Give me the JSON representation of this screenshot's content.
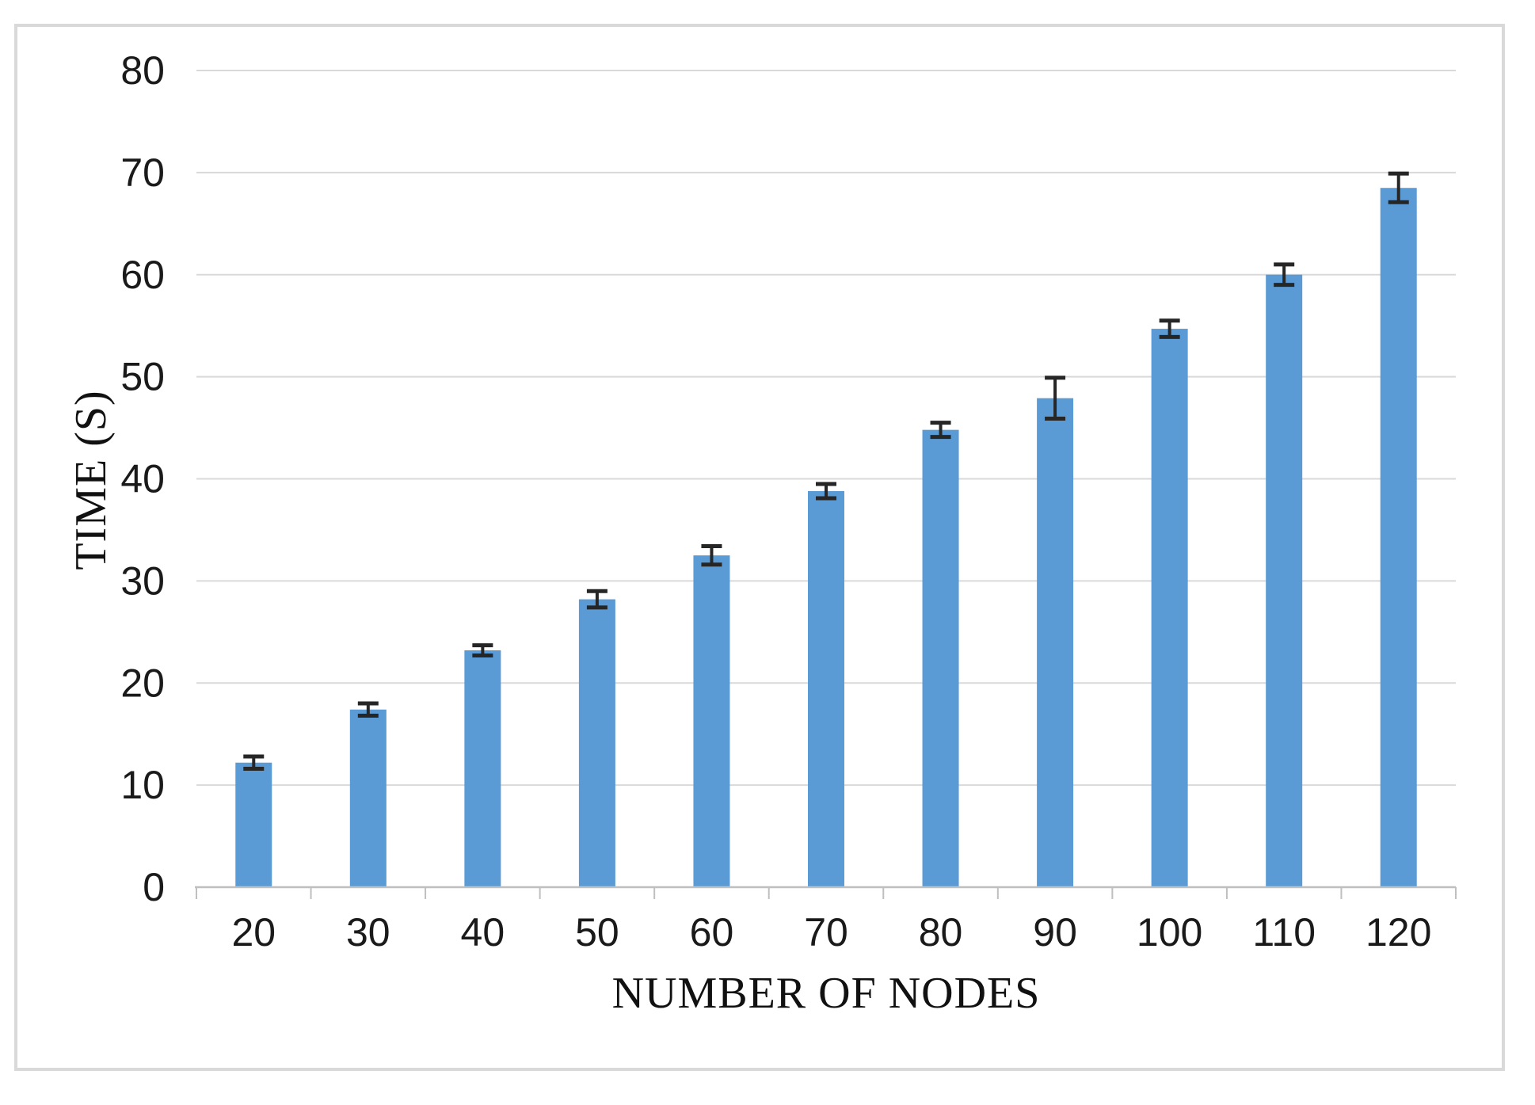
{
  "figure": {
    "background": "#ffffff",
    "border_color": "#d9d9d9"
  },
  "chart_data": {
    "type": "bar",
    "title": "",
    "xlabel": "NUMBER OF NODES",
    "ylabel": "TIME (S)",
    "categories": [
      "20",
      "30",
      "40",
      "50",
      "60",
      "70",
      "80",
      "90",
      "100",
      "110",
      "120"
    ],
    "values": [
      12.2,
      17.4,
      23.2,
      28.2,
      32.5,
      38.8,
      44.8,
      47.9,
      54.7,
      60.0,
      68.5
    ],
    "error_bars": [
      0.6,
      0.6,
      0.5,
      0.8,
      0.9,
      0.7,
      0.7,
      2.0,
      0.8,
      1.0,
      1.4
    ],
    "ylim": [
      0,
      80
    ],
    "yticks": [
      "0",
      "10",
      "20",
      "30",
      "40",
      "50",
      "60",
      "70",
      "80"
    ],
    "grid": true,
    "legend": false,
    "bar_color": "#5b9bd5",
    "gridline_color": "#d9d9d9",
    "axis_color": "#bfbfbf",
    "error_bar_color": "#262626",
    "label_color": "#1a1a1a"
  }
}
